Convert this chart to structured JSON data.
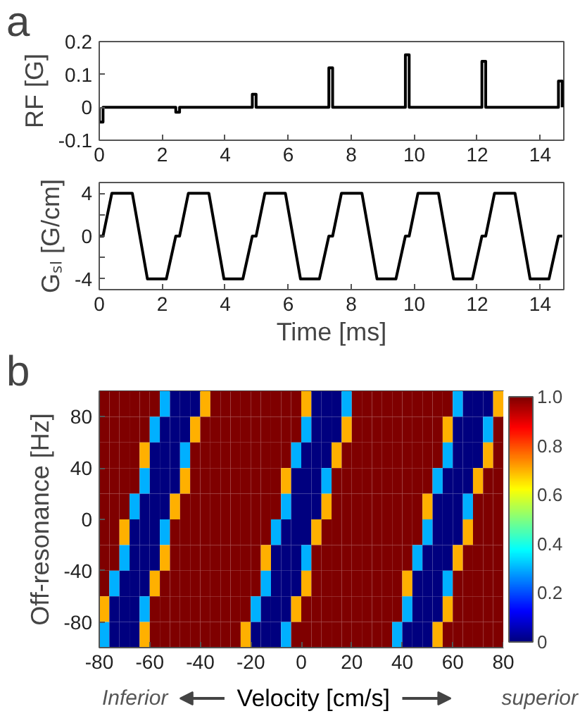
{
  "chart_data": [
    {
      "type": "line",
      "title": "a",
      "ylabel": "RF [G]",
      "xlim": [
        0,
        14.75
      ],
      "xticks": [
        0,
        2,
        4,
        6,
        8,
        10,
        12,
        14
      ],
      "ylim": [
        -0.1,
        0.2
      ],
      "yticks": [
        -0.1,
        0,
        0.1,
        0.2
      ],
      "series": [
        {
          "color": "#000000",
          "x": [
            0,
            0,
            0.12,
            0.12,
            2.43,
            2.43,
            2.55,
            2.55,
            4.86,
            4.86,
            4.98,
            4.98,
            7.29,
            7.29,
            7.41,
            7.41,
            9.72,
            9.72,
            9.84,
            9.84,
            12.15,
            12.15,
            12.27,
            12.27,
            14.58,
            14.58,
            14.7,
            14.7
          ],
          "values": [
            0,
            -0.045,
            -0.045,
            0,
            0,
            -0.015,
            -0.015,
            0,
            0,
            0.04,
            0.04,
            0,
            0,
            0.12,
            0.12,
            0,
            0,
            0.16,
            0.16,
            0,
            0,
            0.14,
            0.14,
            0,
            0,
            0.08,
            0.08,
            0
          ]
        }
      ]
    },
    {
      "type": "line",
      "xlabel": "Time [ms]",
      "ylabel": "Gₛₗ [G/cm]",
      "xlim": [
        0,
        14.75
      ],
      "xticks": [
        0,
        2,
        4,
        6,
        8,
        10,
        12,
        14
      ],
      "ylim": [
        -5,
        5
      ],
      "yticks": [
        -4,
        {
          "value": -2,
          "label": null
        },
        0,
        {
          "value": 2,
          "label": null
        },
        4
      ],
      "series": [
        {
          "color": "#000000",
          "x": [
            0,
            0.12,
            0.4,
            1.05,
            1.53,
            2.13,
            2.43,
            2.55,
            2.83,
            3.48,
            3.96,
            4.56,
            4.86,
            4.98,
            5.26,
            5.91,
            6.39,
            6.99,
            7.29,
            7.41,
            7.69,
            8.34,
            8.82,
            9.42,
            9.72,
            9.84,
            10.12,
            10.77,
            11.25,
            11.85,
            12.15,
            12.27,
            12.55,
            13.2,
            13.68,
            14.28,
            14.58,
            14.7
          ],
          "values": [
            0,
            0,
            4,
            4,
            -4,
            -4,
            0,
            0,
            4,
            4,
            -4,
            -4,
            0,
            0,
            4,
            4,
            -4,
            -4,
            0,
            0,
            4,
            4,
            -4,
            -4,
            0,
            0,
            4,
            4,
            -4,
            -4,
            0,
            0,
            4,
            4,
            -4,
            -4,
            0,
            0
          ]
        }
      ]
    },
    {
      "type": "heatmap",
      "title": "b",
      "xlabel": "Velocity [cm/s]",
      "ylabel": "Off-resonance [Hz]",
      "annotations": [
        "Inferior",
        "superior"
      ],
      "x": [
        -78,
        -74,
        -70,
        -66,
        -62,
        -58,
        -54,
        -50,
        -46,
        -42,
        -38,
        -34,
        -30,
        -26,
        -22,
        -18,
        -14,
        -10,
        -6,
        -2,
        2,
        6,
        10,
        14,
        18,
        22,
        26,
        30,
        34,
        38,
        42,
        46,
        50,
        54,
        58,
        62,
        66,
        70,
        74,
        78
      ],
      "xlim": [
        -80,
        80
      ],
      "xticks": [
        -80,
        -60,
        -40,
        -20,
        0,
        20,
        40,
        60,
        80
      ],
      "ylim": [
        -100,
        100
      ],
      "yticks": [
        -80,
        -40,
        0,
        40,
        80
      ],
      "clim": [
        0,
        1
      ],
      "cticks": [
        0,
        0.2,
        0.4,
        0.6,
        0.8,
        {
          "value": 1,
          "label": "1.0"
        }
      ],
      "cells": [
        [
          1,
          1,
          1,
          1,
          1,
          1,
          0.3,
          0,
          0,
          0,
          0.7,
          1,
          1,
          1,
          1,
          1,
          1,
          1,
          1,
          1,
          0.7,
          0,
          0,
          0,
          0.3,
          1,
          1,
          1,
          1,
          1,
          1,
          1,
          1,
          1,
          1,
          0.3,
          0,
          0,
          0,
          0.7
        ],
        [
          1,
          1,
          1,
          1,
          1,
          0.3,
          0,
          0,
          0,
          0.7,
          1,
          1,
          1,
          1,
          1,
          1,
          1,
          1,
          1,
          1,
          0.3,
          0,
          0,
          0,
          0.7,
          1,
          1,
          1,
          1,
          1,
          1,
          1,
          1,
          1,
          0.7,
          0,
          0,
          0,
          0.3,
          1
        ],
        [
          1,
          1,
          1,
          1,
          0.7,
          0,
          0,
          0,
          0.3,
          1,
          1,
          1,
          1,
          1,
          1,
          1,
          1,
          1,
          1,
          0.3,
          0,
          0,
          0,
          0.7,
          1,
          1,
          1,
          1,
          1,
          1,
          1,
          1,
          1,
          1,
          0.3,
          0,
          0,
          0,
          0.7,
          1
        ],
        [
          1,
          1,
          1,
          1,
          0.3,
          0,
          0,
          0,
          0.7,
          1,
          1,
          1,
          1,
          1,
          1,
          1,
          1,
          1,
          0.7,
          0,
          0,
          0,
          0.3,
          1,
          1,
          1,
          1,
          1,
          1,
          1,
          1,
          1,
          1,
          0.3,
          0,
          0,
          0,
          0.7,
          1,
          1
        ],
        [
          1,
          1,
          1,
          0.3,
          0,
          0,
          0,
          0.7,
          1,
          1,
          1,
          1,
          1,
          1,
          1,
          1,
          1,
          1,
          0.3,
          0,
          0,
          0,
          0.7,
          1,
          1,
          1,
          1,
          1,
          1,
          1,
          1,
          1,
          0.7,
          0,
          0,
          0,
          0.3,
          1,
          1,
          1
        ],
        [
          1,
          1,
          0.7,
          0,
          0,
          0,
          0.3,
          1,
          1,
          1,
          1,
          1,
          1,
          1,
          1,
          1,
          1,
          0.3,
          0,
          0,
          0,
          0.7,
          1,
          1,
          1,
          1,
          1,
          1,
          1,
          1,
          1,
          1,
          0.3,
          0,
          0,
          0,
          0.7,
          1,
          1,
          1
        ],
        [
          1,
          1,
          0.3,
          0,
          0,
          0,
          0.7,
          1,
          1,
          1,
          1,
          1,
          1,
          1,
          1,
          1,
          0.7,
          0,
          0,
          0,
          0.3,
          1,
          1,
          1,
          1,
          1,
          1,
          1,
          1,
          1,
          1,
          0.3,
          0,
          0,
          0,
          0.7,
          1,
          1,
          1,
          1
        ],
        [
          1,
          0.3,
          0,
          0,
          0,
          0.7,
          1,
          1,
          1,
          1,
          1,
          1,
          1,
          1,
          1,
          1,
          0.3,
          0,
          0,
          0,
          0.7,
          1,
          1,
          1,
          1,
          1,
          1,
          1,
          1,
          1,
          0.7,
          0,
          0,
          0,
          0.3,
          1,
          1,
          1,
          1,
          1
        ],
        [
          0.7,
          0,
          0,
          0,
          0.3,
          1,
          1,
          1,
          1,
          1,
          1,
          1,
          1,
          1,
          1,
          0.3,
          0,
          0,
          0,
          0.7,
          1,
          1,
          1,
          1,
          1,
          1,
          1,
          1,
          1,
          1,
          0.3,
          0,
          0,
          0,
          0.7,
          1,
          1,
          1,
          1,
          1
        ],
        [
          0.3,
          0,
          0,
          0,
          0.7,
          1,
          1,
          1,
          1,
          1,
          1,
          1,
          1,
          1,
          0.7,
          0,
          0,
          0,
          0.3,
          1,
          1,
          1,
          1,
          1,
          1,
          1,
          1,
          1,
          1,
          0.3,
          0,
          0,
          0,
          0.7,
          1,
          1,
          1,
          1,
          1,
          1
        ]
      ]
    }
  ]
}
